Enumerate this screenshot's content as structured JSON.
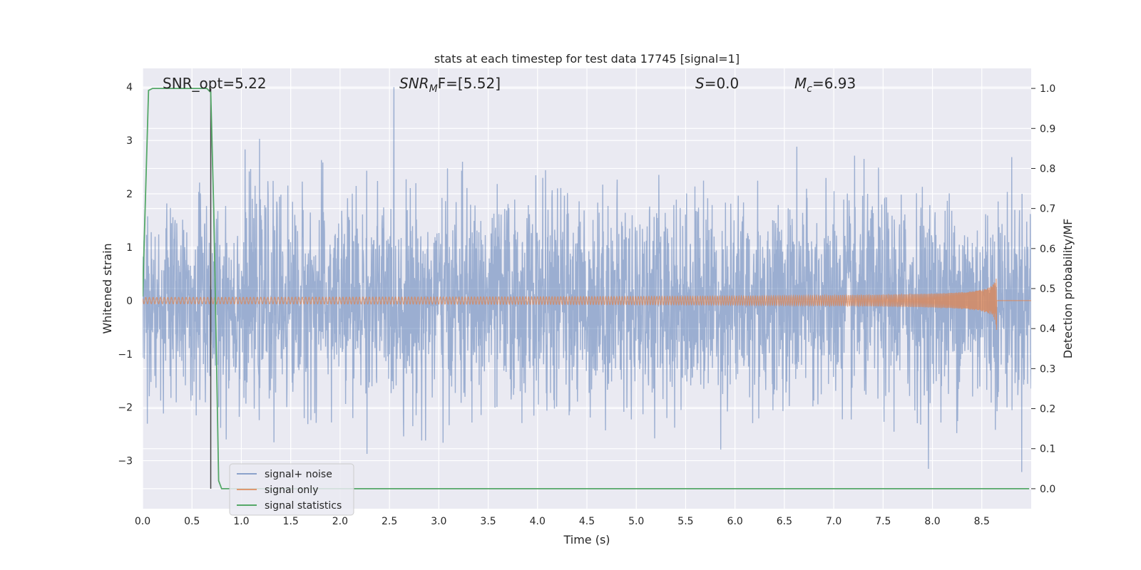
{
  "chart_data": {
    "type": "line",
    "title": "stats at each timestep for test data 17745 [signal=1]",
    "xlabel": "Time (s)",
    "ylabel": "Whitened strain",
    "y2label": "Detection probability/MF",
    "xlim": [
      0,
      9.0
    ],
    "ylim": [
      -3.9,
      4.35
    ],
    "y2lim": [
      -0.05,
      1.05
    ],
    "x_ticks": [
      "0.0",
      "0.5",
      "1.0",
      "1.5",
      "2.0",
      "2.5",
      "3.0",
      "3.5",
      "4.0",
      "4.5",
      "5.0",
      "5.5",
      "6.0",
      "6.5",
      "7.0",
      "7.5",
      "8.0",
      "8.5"
    ],
    "y_ticks": [
      "−3",
      "−2",
      "−1",
      "0",
      "1",
      "2",
      "3",
      "4"
    ],
    "y2_ticks": [
      "0.0",
      "0.1",
      "0.2",
      "0.3",
      "0.4",
      "0.5",
      "0.6",
      "0.7",
      "0.8",
      "0.9",
      "1.0"
    ],
    "grid": true,
    "legend_position": "lower-left",
    "annotations": [
      {
        "prefix": "SNR_opt=5.22",
        "sub": "",
        "suffix": ""
      },
      {
        "prefix": "SNR",
        "sub": "M",
        "suffix": "F=[5.52]",
        "italic_prefix": true
      },
      {
        "prefix": "S",
        "sub": "",
        "suffix": "=0.0",
        "italic_prefix": true
      },
      {
        "prefix": "M",
        "sub": "c",
        "suffix": "=6.93",
        "italic_prefix": true
      }
    ],
    "series": [
      {
        "name": "signal+ noise",
        "color": "#4c72b0",
        "kind": "noise",
        "std": 0.95,
        "peak": 4.0
      },
      {
        "name": "signal only",
        "color": "#dd8452",
        "kind": "chirp",
        "merger_time": 8.65,
        "amplitude": 0.58
      },
      {
        "name": "signal statistics",
        "color": "#55a868",
        "axis": "right",
        "x": [
          0.0,
          0.06,
          0.1,
          0.15,
          0.2,
          0.4,
          0.6,
          0.65,
          0.69,
          0.72,
          0.75,
          0.77,
          0.8,
          0.85,
          1.0,
          2.0,
          4.0,
          6.0,
          8.0,
          8.98
        ],
        "y": [
          0.48,
          0.995,
          1.0,
          1.0,
          1.0,
          1.0,
          1.0,
          1.0,
          0.99,
          0.7,
          0.3,
          0.02,
          0.0,
          0.0,
          0.0,
          0.0,
          0.0,
          0.0,
          0.0,
          0.0
        ]
      }
    ],
    "vline_x": 0.69
  }
}
